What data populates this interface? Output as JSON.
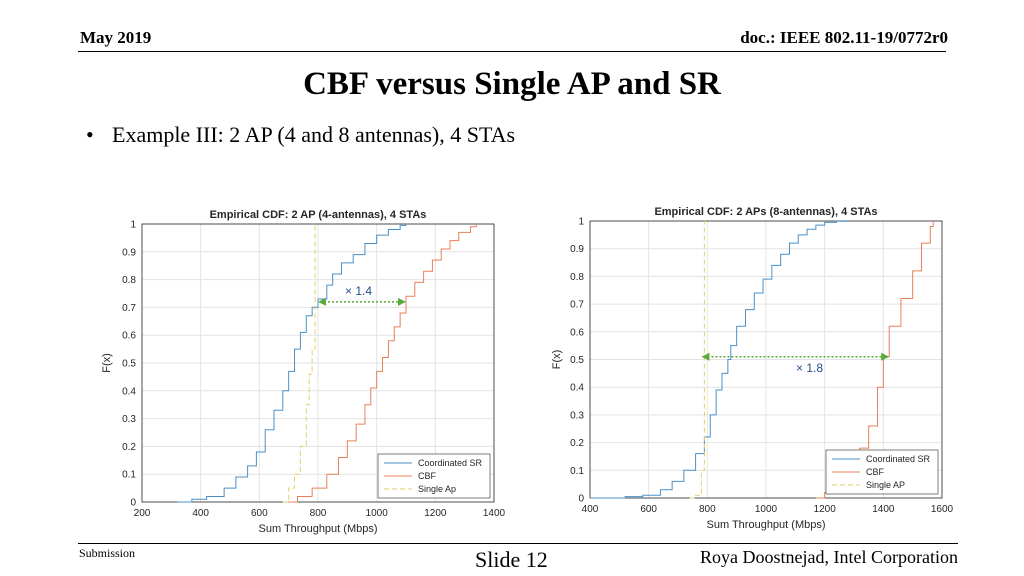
{
  "header": {
    "date": "May 2019",
    "doc": "doc.: IEEE 802.11-19/0772r0"
  },
  "slide": {
    "title": "CBF versus Single AP and SR",
    "bullet": "Example III: 2 AP (4 and 8 antennas), 4 STAs"
  },
  "footer": {
    "left": "Submission",
    "center": "Slide 12",
    "right": "Roya Doostnejad, Intel Corporation"
  },
  "colors": {
    "coordinated_sr": "#4a90c8",
    "cbf": "#e8805a",
    "single_ap": "#e6d06a",
    "arrow": "#5aaa3c",
    "annotation": "#1f4e8c"
  },
  "chart_data": [
    {
      "type": "line",
      "title": "Empirical CDF: 2 AP (4-antennas), 4 STAs",
      "xlabel": "Sum Throughput (Mbps)",
      "ylabel": "F(x)",
      "xlim": [
        200,
        1400
      ],
      "ylim": [
        0,
        1
      ],
      "xticks": [
        200,
        400,
        600,
        800,
        1000,
        1200,
        1400
      ],
      "yticks": [
        0,
        0.1,
        0.2,
        0.3,
        0.4,
        0.5,
        0.6,
        0.7,
        0.8,
        0.9,
        1
      ],
      "grid": true,
      "legend_position": "bottom-right",
      "series": [
        {
          "name": "Coordinated SR",
          "color": "#4a90c8",
          "style": "solid",
          "x": [
            320,
            370,
            420,
            480,
            520,
            560,
            590,
            620,
            650,
            680,
            700,
            720,
            740,
            760,
            780,
            800,
            830,
            850,
            880,
            920,
            960,
            1000,
            1040,
            1080,
            1100
          ],
          "y": [
            0,
            0.01,
            0.02,
            0.05,
            0.09,
            0.13,
            0.18,
            0.26,
            0.33,
            0.4,
            0.47,
            0.55,
            0.61,
            0.67,
            0.7,
            0.73,
            0.78,
            0.82,
            0.86,
            0.89,
            0.93,
            0.96,
            0.98,
            0.995,
            1
          ]
        },
        {
          "name": "CBF",
          "color": "#e8805a",
          "style": "solid",
          "x": [
            690,
            730,
            780,
            830,
            870,
            900,
            930,
            960,
            980,
            1000,
            1020,
            1040,
            1060,
            1080,
            1100,
            1130,
            1160,
            1190,
            1220,
            1250,
            1280,
            1320,
            1340
          ],
          "y": [
            0,
            0.02,
            0.05,
            0.1,
            0.16,
            0.22,
            0.28,
            0.35,
            0.41,
            0.47,
            0.52,
            0.58,
            0.63,
            0.68,
            0.74,
            0.79,
            0.83,
            0.87,
            0.91,
            0.94,
            0.97,
            0.99,
            1
          ]
        },
        {
          "name": "Single Ap",
          "color": "#e6d06a",
          "style": "dashed",
          "x": [
            680,
            700,
            720,
            740,
            760,
            770,
            780,
            790
          ],
          "y": [
            0,
            0.05,
            0.1,
            0.2,
            0.35,
            0.46,
            0.55,
            1
          ]
        }
      ],
      "annotation": {
        "text": "× 1.4",
        "y": 0.72,
        "x_from": 800,
        "x_to": 1100
      }
    },
    {
      "type": "line",
      "title": "Empirical CDF: 2 APs (8-antennas), 4 STAs",
      "xlabel": "Sum Throughput (Mbps)",
      "ylabel": "F(x)",
      "xlim": [
        400,
        1600
      ],
      "ylim": [
        0,
        1
      ],
      "xticks": [
        400,
        600,
        800,
        1000,
        1200,
        1400,
        1600
      ],
      "yticks": [
        0,
        0.1,
        0.2,
        0.3,
        0.4,
        0.5,
        0.6,
        0.7,
        0.8,
        0.9,
        1
      ],
      "grid": true,
      "legend_position": "bottom-right",
      "series": [
        {
          "name": "Coordinated SR",
          "color": "#4a90c8",
          "style": "solid",
          "x": [
            400,
            520,
            580,
            640,
            680,
            720,
            760,
            790,
            810,
            830,
            850,
            870,
            880,
            900,
            930,
            960,
            990,
            1020,
            1050,
            1080,
            1110,
            1140,
            1170,
            1200,
            1240,
            1280
          ],
          "y": [
            0,
            0.005,
            0.01,
            0.03,
            0.06,
            0.1,
            0.16,
            0.22,
            0.3,
            0.39,
            0.45,
            0.5,
            0.55,
            0.62,
            0.68,
            0.74,
            0.79,
            0.84,
            0.88,
            0.92,
            0.95,
            0.97,
            0.985,
            0.995,
            0.999,
            1
          ]
        },
        {
          "name": "CBF",
          "color": "#e8805a",
          "style": "solid",
          "x": [
            1170,
            1200,
            1240,
            1280,
            1320,
            1350,
            1380,
            1400,
            1420,
            1460,
            1500,
            1530,
            1560,
            1570
          ],
          "y": [
            0,
            0.02,
            0.05,
            0.1,
            0.18,
            0.26,
            0.4,
            0.51,
            0.62,
            0.72,
            0.82,
            0.92,
            0.98,
            1
          ]
        },
        {
          "name": "Single AP",
          "color": "#e6d06a",
          "style": "dashed",
          "x": [
            740,
            760,
            780,
            790
          ],
          "y": [
            0,
            0.01,
            0.1,
            1
          ]
        }
      ],
      "annotation": {
        "text": "× 1.8",
        "y": 0.51,
        "x_from": 780,
        "x_to": 1420
      }
    }
  ]
}
